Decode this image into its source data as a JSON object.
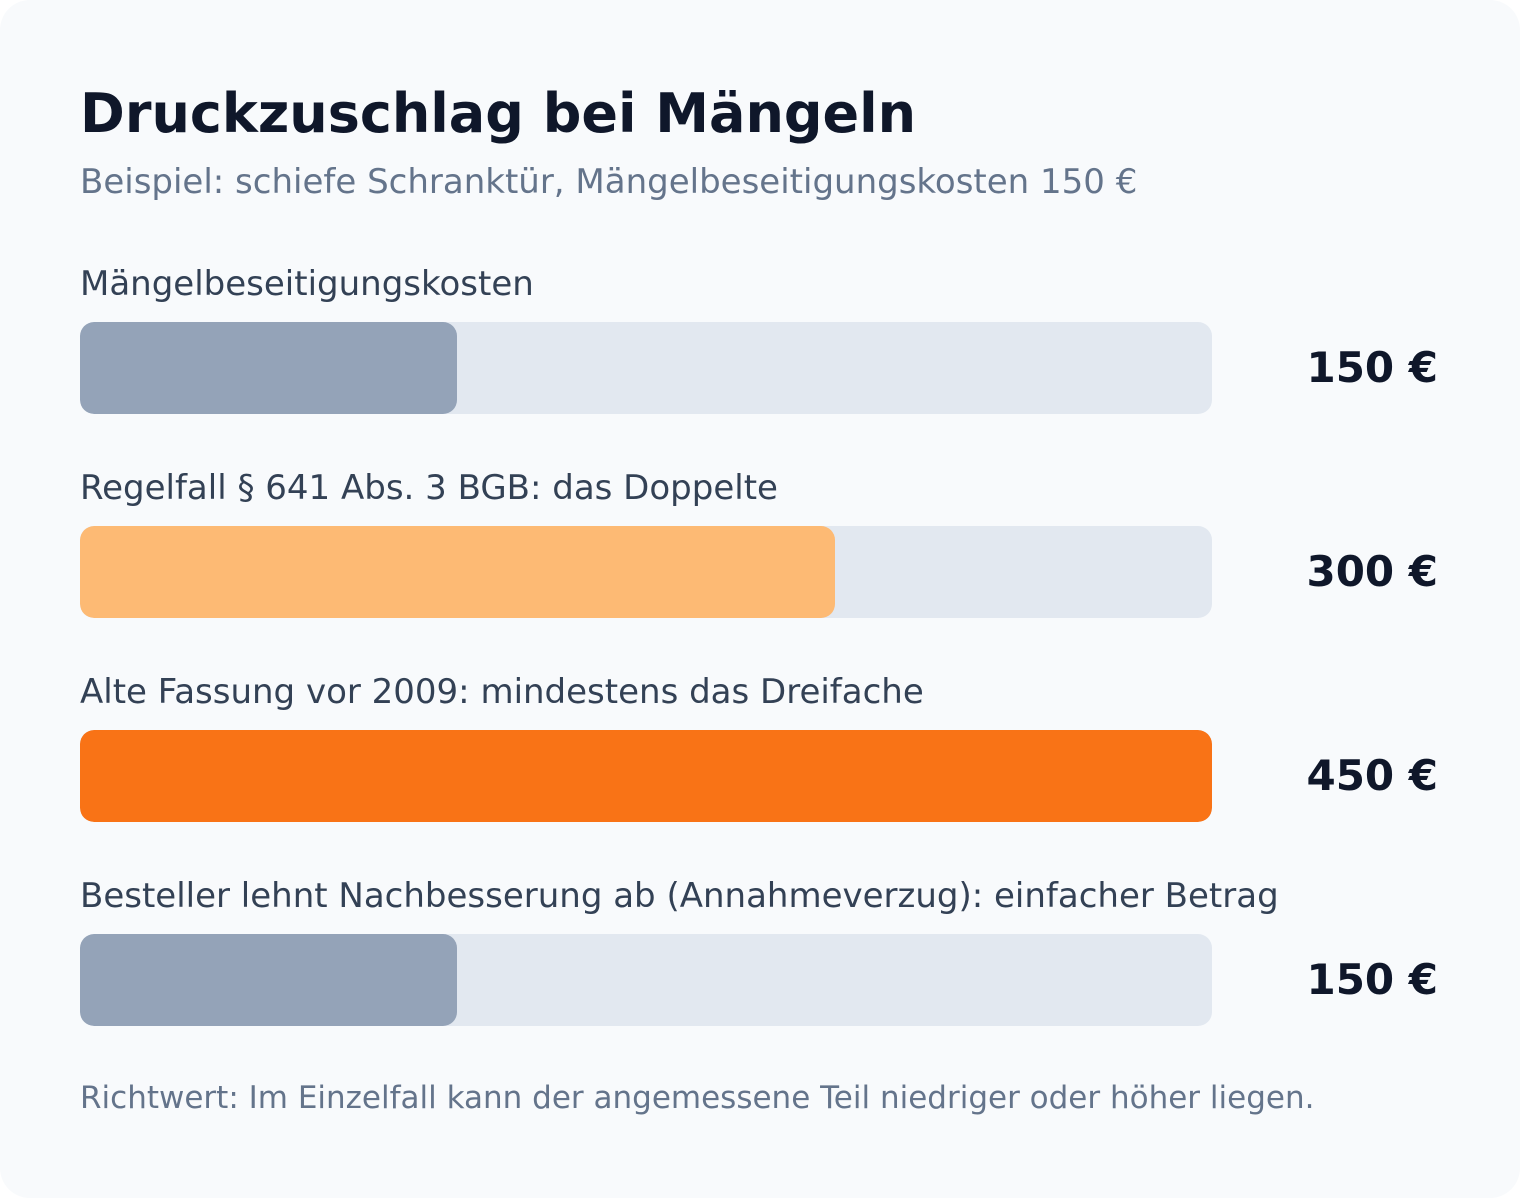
{
  "chart_data": {
    "type": "bar",
    "orientation": "horizontal",
    "title": "Druckzuschlag bei Mängeln",
    "subtitle": "Beispiel: schiefe Schranktür, Mängelbeseitigungskosten 150 €",
    "xlim": [
      0,
      450
    ],
    "unit": "€",
    "categories": [
      "Mängelbeseitigungskosten",
      "Regelfall § 641 Abs. 3 BGB: das Doppelte",
      "Alte Fassung vor 2009: mindestens das Dreifache",
      "Besteller lehnt Nachbesserung ab (Annahmeverzug): einfacher Betrag"
    ],
    "values": [
      150,
      300,
      450,
      150
    ],
    "value_labels": [
      "150 €",
      "300 €",
      "450 €",
      "150 €"
    ],
    "colors": [
      "#94a3b8",
      "#fdba74",
      "#f97316",
      "#94a3b8"
    ],
    "footnote": "Richtwert: Im Einzelfall kann der angemessene Teil niedriger oder höher liegen."
  }
}
